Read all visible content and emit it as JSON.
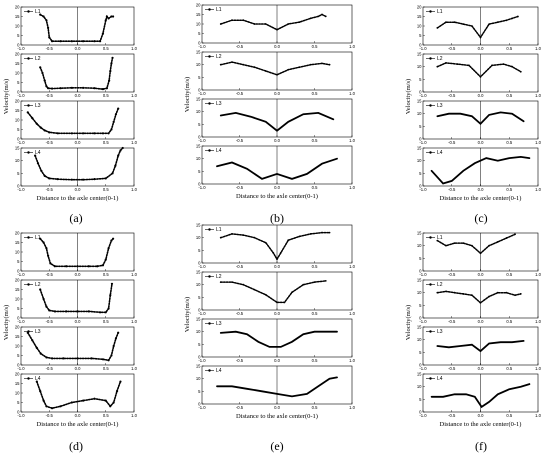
{
  "figure": {
    "panel_labels": [
      "(a)",
      "(b)",
      "(c)",
      "(d)",
      "(e)",
      "(f)"
    ],
    "xlabel": "Distance to the axle center(0-1)",
    "ylabel": "Velocity(m/s)",
    "xticks": [
      "-1.0",
      "-0.5",
      "0.0",
      "0.5",
      "1.0"
    ]
  },
  "chart_data": [
    {
      "panel": "(a)",
      "type": "line",
      "style": "dots",
      "xlabel": "Distance to the axle center(0-1)",
      "ylabel": "Velocity(m/s)",
      "subplots": [
        {
          "legend": "L1",
          "ylim": [
            0,
            20
          ],
          "yticks": [
            0,
            5,
            10,
            15,
            20
          ],
          "x": [
            -0.66,
            -0.6,
            -0.55,
            -0.52,
            -0.5,
            -0.45,
            -0.3,
            -0.1,
            0.1,
            0.3,
            0.4,
            0.45,
            0.5,
            0.52,
            0.55,
            0.6,
            0.63
          ],
          "y": [
            16,
            15,
            13,
            9,
            4,
            2,
            2,
            2,
            2,
            2,
            2,
            6,
            13,
            15,
            14,
            15,
            15
          ]
        },
        {
          "legend": "L2",
          "ylim": [
            0,
            20
          ],
          "yticks": [
            0,
            5,
            10,
            15,
            20
          ],
          "x": [
            -0.66,
            -0.62,
            -0.58,
            -0.55,
            -0.52,
            -0.45,
            -0.3,
            -0.1,
            0.1,
            0.3,
            0.45,
            0.52,
            0.56,
            0.58,
            0.6,
            0.62
          ],
          "y": [
            13,
            10,
            6,
            3,
            2,
            1.8,
            2,
            2.2,
            2.2,
            2,
            1.5,
            2,
            6,
            11,
            15,
            18
          ]
        },
        {
          "legend": "L3",
          "ylim": [
            0,
            20
          ],
          "yticks": [
            0,
            5,
            10,
            15,
            20
          ],
          "x": [
            -0.88,
            -0.8,
            -0.72,
            -0.65,
            -0.58,
            -0.5,
            -0.35,
            -0.1,
            0.1,
            0.3,
            0.45,
            0.55,
            0.6,
            0.64,
            0.68,
            0.72
          ],
          "y": [
            14,
            11,
            8,
            6,
            4.5,
            3.5,
            3,
            3,
            3,
            3,
            3,
            3,
            5,
            9,
            13,
            16
          ]
        },
        {
          "legend": "L4",
          "ylim": [
            0,
            15
          ],
          "yticks": [
            0,
            5,
            10,
            15
          ],
          "x": [
            -0.75,
            -0.7,
            -0.64,
            -0.58,
            -0.5,
            -0.35,
            -0.1,
            0.1,
            0.3,
            0.5,
            0.62,
            0.67,
            0.72,
            0.76,
            0.8
          ],
          "y": [
            12,
            9,
            6,
            4,
            3,
            2.7,
            2.5,
            2.5,
            2.7,
            3,
            5,
            8,
            12,
            14,
            15
          ]
        }
      ]
    },
    {
      "panel": "(b)",
      "type": "line",
      "style": "mixed",
      "xlabel": "Distance to the axle center(0-1)",
      "ylabel": "",
      "subplots": [
        {
          "legend": "L1",
          "ylim": [
            0,
            20
          ],
          "yticks": [
            0,
            5,
            10,
            15,
            20
          ],
          "x": [
            -0.75,
            -0.6,
            -0.45,
            -0.3,
            -0.15,
            0,
            0.15,
            0.3,
            0.45,
            0.55,
            0.6,
            0.65
          ],
          "y": [
            10,
            12,
            12,
            10,
            10,
            7,
            10,
            11,
            13,
            14,
            15,
            14
          ]
        },
        {
          "legend": "L2",
          "ylim": [
            0,
            15
          ],
          "yticks": [
            0,
            5,
            10,
            15
          ],
          "x": [
            -0.75,
            -0.6,
            -0.45,
            -0.3,
            -0.15,
            0,
            0.15,
            0.3,
            0.45,
            0.6,
            0.7
          ],
          "y": [
            10,
            11,
            10,
            9,
            7.5,
            6,
            8,
            9,
            10,
            10.5,
            10
          ]
        },
        {
          "legend": "L3",
          "ylim": [
            0,
            15
          ],
          "yticks": [
            0,
            5,
            10,
            15
          ],
          "x": [
            -0.75,
            -0.55,
            -0.35,
            -0.15,
            0,
            0.15,
            0.35,
            0.55,
            0.75
          ],
          "y": [
            8.5,
            9.5,
            8,
            6,
            2.5,
            6,
            9,
            9.5,
            7
          ]
        },
        {
          "legend": "L4",
          "ylim": [
            0,
            15
          ],
          "yticks": [
            0,
            5,
            10,
            15
          ],
          "x": [
            -0.8,
            -0.6,
            -0.4,
            -0.2,
            0,
            0.2,
            0.4,
            0.6,
            0.8
          ],
          "y": [
            7,
            8.5,
            6,
            2,
            4,
            2,
            4,
            8,
            10
          ]
        }
      ]
    },
    {
      "panel": "(c)",
      "type": "line",
      "style": "mixed",
      "xlabel": "Distance to the axle center(0-1)",
      "ylabel": "",
      "subplots": [
        {
          "legend": "L1",
          "ylim": [
            0,
            20
          ],
          "yticks": [
            0,
            5,
            10,
            15,
            20
          ],
          "x": [
            -0.75,
            -0.6,
            -0.45,
            -0.3,
            -0.15,
            0,
            0.15,
            0.3,
            0.45,
            0.55,
            0.65
          ],
          "y": [
            9,
            12,
            12,
            11,
            10,
            4,
            11,
            12,
            13,
            14,
            15
          ]
        },
        {
          "legend": "L2",
          "ylim": [
            0,
            15
          ],
          "yticks": [
            0,
            5,
            10,
            15
          ],
          "x": [
            -0.75,
            -0.6,
            -0.4,
            -0.2,
            0,
            0.2,
            0.4,
            0.55,
            0.7
          ],
          "y": [
            10,
            11.5,
            11,
            10.5,
            6,
            10.5,
            11,
            10,
            8
          ]
        },
        {
          "legend": "L3",
          "ylim": [
            0,
            15
          ],
          "yticks": [
            0,
            5,
            10,
            15
          ],
          "x": [
            -0.75,
            -0.55,
            -0.35,
            -0.15,
            0,
            0.15,
            0.35,
            0.55,
            0.75
          ],
          "y": [
            9,
            10,
            10,
            9,
            6,
            9.5,
            10.5,
            10,
            7
          ]
        },
        {
          "legend": "L4",
          "ylim": [
            0,
            15
          ],
          "yticks": [
            0,
            5,
            10,
            15
          ],
          "x": [
            -0.85,
            -0.65,
            -0.5,
            -0.3,
            -0.1,
            0.1,
            0.3,
            0.5,
            0.7,
            0.85
          ],
          "y": [
            6,
            1,
            2,
            6,
            9,
            11,
            10,
            11,
            11.5,
            11
          ]
        }
      ]
    },
    {
      "panel": "(d)",
      "type": "line",
      "style": "dots",
      "xlabel": "Distance to the axle center(0-1)",
      "ylabel": "Velocity(m/s)",
      "subplots": [
        {
          "legend": "L1",
          "ylim": [
            0,
            20
          ],
          "yticks": [
            0,
            5,
            10,
            15,
            20
          ],
          "x": [
            -0.66,
            -0.6,
            -0.55,
            -0.52,
            -0.48,
            -0.4,
            -0.2,
            0,
            0.2,
            0.35,
            0.45,
            0.5,
            0.55,
            0.6,
            0.63
          ],
          "y": [
            17,
            15,
            12,
            8,
            4,
            2.5,
            2.5,
            2.5,
            2.5,
            2.5,
            3,
            6,
            12,
            16,
            17
          ]
        },
        {
          "legend": "L2",
          "ylim": [
            0,
            20
          ],
          "yticks": [
            0,
            5,
            10,
            15,
            20
          ],
          "x": [
            -0.66,
            -0.6,
            -0.55,
            -0.5,
            -0.4,
            -0.2,
            0,
            0.2,
            0.4,
            0.5,
            0.55,
            0.58,
            0.61
          ],
          "y": [
            15,
            10,
            6,
            4,
            3.5,
            3.5,
            3.5,
            3.5,
            3,
            3,
            5,
            12,
            18
          ]
        },
        {
          "legend": "L3",
          "ylim": [
            0,
            20
          ],
          "yticks": [
            0,
            5,
            10,
            15,
            20
          ],
          "x": [
            -0.88,
            -0.8,
            -0.72,
            -0.65,
            -0.55,
            -0.45,
            -0.25,
            0,
            0.25,
            0.45,
            0.55,
            0.6,
            0.64,
            0.68,
            0.72
          ],
          "y": [
            17,
            13,
            9,
            6,
            4,
            3.5,
            3.5,
            3.5,
            3.5,
            3,
            2.5,
            5,
            10,
            14,
            17
          ]
        },
        {
          "legend": "L4",
          "ylim": [
            0,
            20
          ],
          "yticks": [
            0,
            5,
            10,
            15,
            20
          ],
          "x": [
            -0.72,
            -0.66,
            -0.6,
            -0.55,
            -0.45,
            -0.3,
            -0.1,
            0.1,
            0.3,
            0.5,
            0.58,
            0.64,
            0.7,
            0.76
          ],
          "y": [
            16,
            11,
            6,
            3,
            2,
            3,
            5,
            6,
            7,
            6,
            3,
            5,
            11,
            16
          ]
        }
      ]
    },
    {
      "panel": "(e)",
      "type": "line",
      "style": "mixed",
      "xlabel": "Distance to the axle center(0-1)",
      "ylabel": "",
      "subplots": [
        {
          "legend": "L1",
          "ylim": [
            0,
            15
          ],
          "yticks": [
            0,
            5,
            10,
            15
          ],
          "x": [
            -0.75,
            -0.6,
            -0.45,
            -0.3,
            -0.15,
            -0.05,
            0,
            0.05,
            0.15,
            0.3,
            0.45,
            0.6,
            0.7
          ],
          "y": [
            10,
            11.5,
            11,
            10,
            8,
            4,
            1.5,
            4,
            9,
            10.5,
            11.5,
            12,
            12
          ]
        },
        {
          "legend": "L2",
          "ylim": [
            0,
            15
          ],
          "yticks": [
            0,
            5,
            10,
            15
          ],
          "x": [
            -0.75,
            -0.6,
            -0.45,
            -0.3,
            -0.15,
            0,
            0.1,
            0.2,
            0.35,
            0.5,
            0.65
          ],
          "y": [
            11,
            11,
            10,
            8,
            6,
            3,
            3,
            7,
            10,
            11,
            11.5
          ]
        },
        {
          "legend": "L3",
          "ylim": [
            0,
            15
          ],
          "yticks": [
            0,
            5,
            10,
            15
          ],
          "x": [
            -0.75,
            -0.55,
            -0.4,
            -0.25,
            -0.1,
            0.05,
            0.2,
            0.35,
            0.5,
            0.65,
            0.8
          ],
          "y": [
            9.5,
            10,
            9,
            6,
            4,
            4,
            6,
            9,
            10,
            10,
            10
          ]
        },
        {
          "legend": "L4",
          "ylim": [
            0,
            15
          ],
          "yticks": [
            0,
            5,
            10,
            15
          ],
          "x": [
            -0.8,
            -0.6,
            -0.4,
            -0.2,
            0,
            0.2,
            0.4,
            0.55,
            0.7,
            0.8
          ],
          "y": [
            7,
            7,
            6,
            5,
            4,
            3,
            4,
            7,
            10,
            10.5
          ]
        }
      ]
    },
    {
      "panel": "(f)",
      "type": "line",
      "style": "mixed",
      "xlabel": "Distance to the axle center(0-1)",
      "ylabel": "",
      "subplots": [
        {
          "legend": "L1",
          "ylim": [
            0,
            15
          ],
          "yticks": [
            0,
            5,
            10,
            15
          ],
          "x": [
            -0.75,
            -0.6,
            -0.45,
            -0.3,
            -0.15,
            0,
            0.15,
            0.3,
            0.45,
            0.6
          ],
          "y": [
            12,
            10,
            11,
            11,
            10,
            7,
            10,
            11.5,
            13,
            14.5
          ]
        },
        {
          "legend": "L2",
          "ylim": [
            0,
            15
          ],
          "yticks": [
            0,
            5,
            10,
            15
          ],
          "x": [
            -0.75,
            -0.6,
            -0.45,
            -0.3,
            -0.15,
            0,
            0.15,
            0.3,
            0.45,
            0.6,
            0.7
          ],
          "y": [
            10,
            10.5,
            10,
            9.5,
            9,
            6,
            8.5,
            10,
            10,
            9,
            9.5
          ]
        },
        {
          "legend": "L3",
          "ylim": [
            0,
            15
          ],
          "yticks": [
            0,
            5,
            10,
            15
          ],
          "x": [
            -0.75,
            -0.55,
            -0.35,
            -0.15,
            0,
            0.15,
            0.35,
            0.55,
            0.75
          ],
          "y": [
            7.5,
            7,
            7.5,
            8,
            5.5,
            8.5,
            9,
            9,
            9.5
          ]
        },
        {
          "legend": "L4",
          "ylim": [
            0,
            15
          ],
          "yticks": [
            0,
            5,
            10,
            15
          ],
          "x": [
            -0.85,
            -0.65,
            -0.45,
            -0.25,
            -0.1,
            0.02,
            0.15,
            0.3,
            0.5,
            0.7,
            0.85
          ],
          "y": [
            6,
            6,
            7,
            7,
            6,
            2,
            4,
            7,
            9,
            10,
            11
          ]
        }
      ]
    }
  ]
}
